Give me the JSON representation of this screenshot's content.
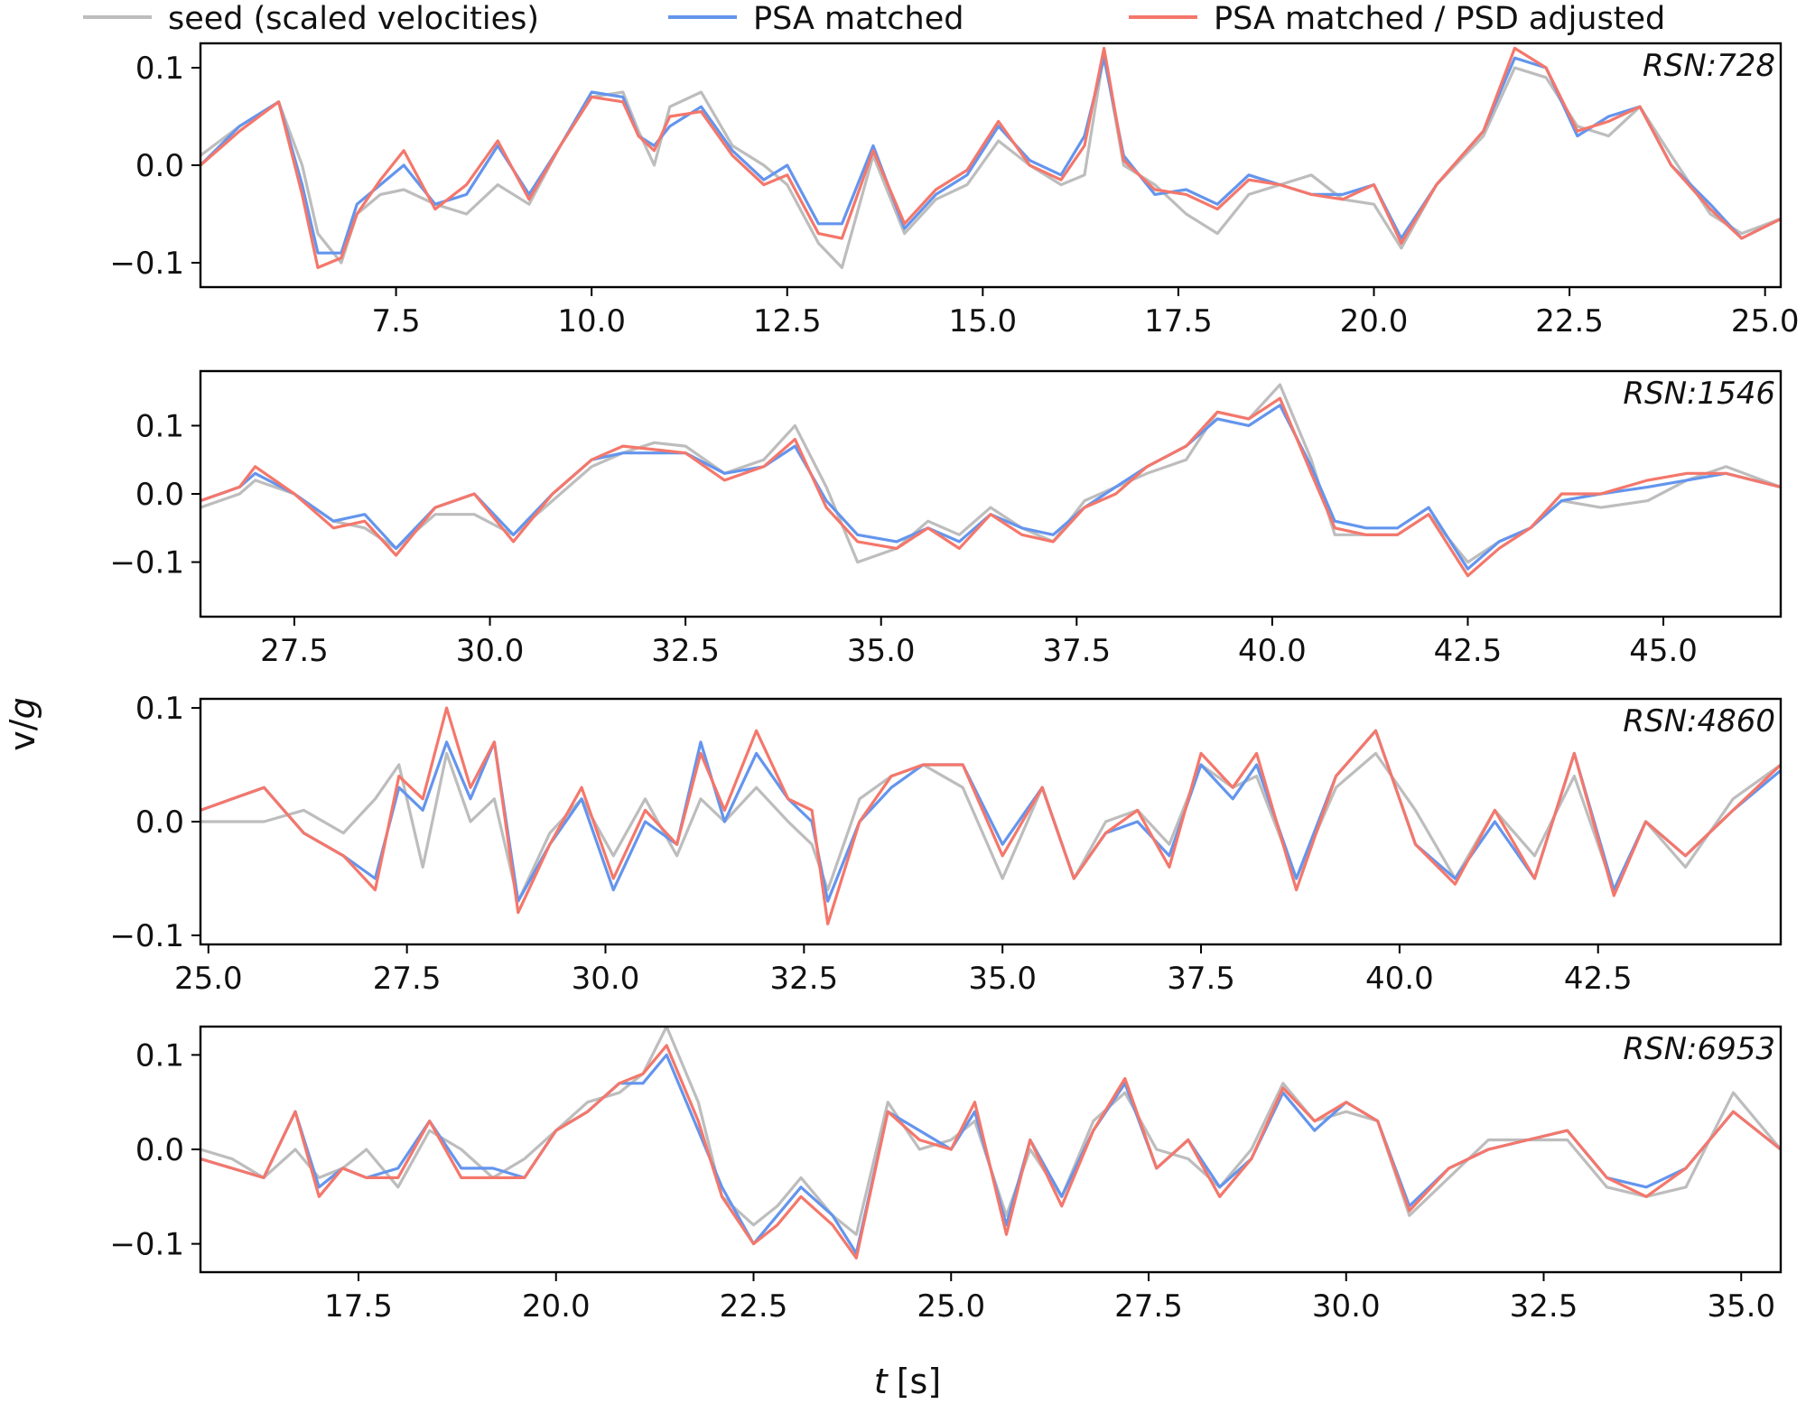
{
  "legend": [
    {
      "label": "seed (scaled velocities)",
      "color": "#bdbdbd"
    },
    {
      "label": "PSA matched",
      "color": "#6495ed"
    },
    {
      "label": "PSA matched / PSD adjusted",
      "color": "#f4776b"
    }
  ],
  "xlabel_italic": "t",
  "xlabel_unit": "[s]",
  "ylabel_main": "v/",
  "ylabel_italic": "g",
  "chart_data": [
    {
      "type": "line",
      "tag": "RSN:728",
      "xlim": [
        5.0,
        25.2
      ],
      "ylim": [
        -0.125,
        0.125
      ],
      "xticks": [
        "7.5",
        "10.0",
        "12.5",
        "15.0",
        "17.5",
        "20.0",
        "22.5",
        "25.0"
      ],
      "yticks": [
        "0.1",
        "0.0",
        "−0.1"
      ],
      "x": [
        5.0,
        5.5,
        6.0,
        6.3,
        6.5,
        6.8,
        7.0,
        7.3,
        7.6,
        8.0,
        8.4,
        8.8,
        9.2,
        9.6,
        10.0,
        10.4,
        10.6,
        10.8,
        11.0,
        11.4,
        11.8,
        12.2,
        12.5,
        12.9,
        13.2,
        13.6,
        14.0,
        14.4,
        14.8,
        15.2,
        15.6,
        16.0,
        16.3,
        16.55,
        16.8,
        17.2,
        17.6,
        18.0,
        18.4,
        18.8,
        19.2,
        19.6,
        20.0,
        20.35,
        20.8,
        21.4,
        21.8,
        22.2,
        22.6,
        23.0,
        23.4,
        23.8,
        24.3,
        24.7,
        25.2
      ],
      "series": [
        {
          "name": "seed (scaled velocities)",
          "values": [
            0.01,
            0.04,
            0.065,
            0.0,
            -0.07,
            -0.1,
            -0.05,
            -0.03,
            -0.025,
            -0.04,
            -0.05,
            -0.02,
            -0.04,
            0.02,
            0.07,
            0.075,
            0.035,
            0.0,
            0.06,
            0.075,
            0.02,
            0.0,
            -0.02,
            -0.08,
            -0.105,
            0.01,
            -0.07,
            -0.035,
            -0.02,
            0.025,
            0.0,
            -0.02,
            -0.01,
            0.115,
            0.0,
            -0.02,
            -0.05,
            -0.07,
            -0.03,
            -0.02,
            -0.01,
            -0.035,
            -0.04,
            -0.085,
            -0.02,
            0.03,
            0.1,
            0.09,
            0.04,
            0.03,
            0.06,
            0.01,
            -0.05,
            -0.07,
            -0.055
          ]
        },
        {
          "name": "PSA matched",
          "values": [
            0.0,
            0.04,
            0.065,
            -0.02,
            -0.09,
            -0.09,
            -0.04,
            -0.02,
            0.0,
            -0.04,
            -0.03,
            0.02,
            -0.03,
            0.02,
            0.075,
            0.07,
            0.03,
            0.02,
            0.04,
            0.06,
            0.015,
            -0.015,
            0.0,
            -0.06,
            -0.06,
            0.02,
            -0.065,
            -0.03,
            -0.01,
            0.04,
            0.005,
            -0.01,
            0.03,
            0.11,
            0.01,
            -0.03,
            -0.025,
            -0.04,
            -0.01,
            -0.02,
            -0.03,
            -0.03,
            -0.02,
            -0.075,
            -0.02,
            0.035,
            0.11,
            0.1,
            0.03,
            0.05,
            0.06,
            0.0,
            -0.04,
            -0.075,
            -0.055
          ]
        },
        {
          "name": "PSA matched / PSD adjusted",
          "values": [
            0.0,
            0.035,
            0.065,
            -0.03,
            -0.105,
            -0.095,
            -0.05,
            -0.015,
            0.015,
            -0.045,
            -0.02,
            0.025,
            -0.035,
            0.02,
            0.07,
            0.065,
            0.03,
            0.015,
            0.05,
            0.055,
            0.01,
            -0.02,
            -0.01,
            -0.07,
            -0.075,
            0.015,
            -0.06,
            -0.025,
            -0.005,
            0.045,
            0.0,
            -0.015,
            0.02,
            0.12,
            0.005,
            -0.025,
            -0.03,
            -0.045,
            -0.015,
            -0.02,
            -0.03,
            -0.035,
            -0.02,
            -0.08,
            -0.02,
            0.035,
            0.12,
            0.1,
            0.035,
            0.045,
            0.06,
            0.0,
            -0.045,
            -0.075,
            -0.055
          ]
        }
      ]
    },
    {
      "type": "line",
      "tag": "RSN:1546",
      "xlim": [
        26.3,
        46.5
      ],
      "ylim": [
        -0.18,
        0.18
      ],
      "xticks": [
        "27.5",
        "30.0",
        "32.5",
        "35.0",
        "37.5",
        "40.0",
        "42.5",
        "45.0"
      ],
      "yticks": [
        "0.1",
        "0.0",
        "−0.1"
      ],
      "x": [
        26.3,
        26.8,
        27.0,
        27.5,
        28.0,
        28.4,
        28.8,
        29.3,
        29.8,
        30.3,
        30.8,
        31.3,
        31.7,
        32.1,
        32.5,
        33.0,
        33.5,
        33.9,
        34.3,
        34.7,
        35.2,
        35.6,
        36.0,
        36.4,
        36.8,
        37.2,
        37.6,
        38.0,
        38.4,
        38.9,
        39.3,
        39.7,
        40.1,
        40.5,
        40.8,
        41.2,
        41.6,
        42.0,
        42.5,
        42.9,
        43.3,
        43.7,
        44.2,
        44.8,
        45.3,
        45.8,
        46.5
      ],
      "series": [
        {
          "name": "seed (scaled velocities)",
          "values": [
            -0.02,
            0.0,
            0.02,
            0.0,
            -0.04,
            -0.05,
            -0.08,
            -0.03,
            -0.03,
            -0.06,
            -0.01,
            0.04,
            0.06,
            0.075,
            0.07,
            0.03,
            0.05,
            0.1,
            0.01,
            -0.1,
            -0.08,
            -0.04,
            -0.06,
            -0.02,
            -0.05,
            -0.07,
            -0.01,
            0.01,
            0.03,
            0.05,
            0.12,
            0.11,
            0.16,
            0.05,
            -0.06,
            -0.06,
            -0.06,
            -0.03,
            -0.1,
            -0.07,
            -0.05,
            -0.01,
            -0.02,
            -0.01,
            0.02,
            0.04,
            0.01
          ]
        },
        {
          "name": "PSA matched",
          "values": [
            -0.01,
            0.01,
            0.03,
            0.0,
            -0.04,
            -0.03,
            -0.08,
            -0.02,
            0.0,
            -0.06,
            0.0,
            0.05,
            0.06,
            0.06,
            0.06,
            0.03,
            0.04,
            0.07,
            -0.01,
            -0.06,
            -0.07,
            -0.05,
            -0.07,
            -0.03,
            -0.05,
            -0.06,
            -0.02,
            0.01,
            0.04,
            0.07,
            0.11,
            0.1,
            0.13,
            0.04,
            -0.04,
            -0.05,
            -0.05,
            -0.02,
            -0.11,
            -0.07,
            -0.05,
            -0.01,
            0.0,
            0.01,
            0.02,
            0.03,
            0.01
          ]
        },
        {
          "name": "PSA matched / PSD adjusted",
          "values": [
            -0.01,
            0.01,
            0.04,
            0.0,
            -0.05,
            -0.04,
            -0.09,
            -0.02,
            0.0,
            -0.07,
            0.0,
            0.05,
            0.07,
            0.065,
            0.06,
            0.02,
            0.04,
            0.08,
            -0.02,
            -0.07,
            -0.08,
            -0.05,
            -0.08,
            -0.03,
            -0.06,
            -0.07,
            -0.02,
            0.0,
            0.04,
            0.07,
            0.12,
            0.11,
            0.14,
            0.03,
            -0.05,
            -0.06,
            -0.06,
            -0.03,
            -0.12,
            -0.08,
            -0.05,
            0.0,
            0.0,
            0.02,
            0.03,
            0.03,
            0.01
          ]
        }
      ]
    },
    {
      "type": "line",
      "tag": "RSN:4860",
      "xlim": [
        24.9,
        44.8
      ],
      "ylim": [
        -0.108,
        0.108
      ],
      "xticks": [
        "25.0",
        "27.5",
        "30.0",
        "32.5",
        "35.0",
        "37.5",
        "40.0",
        "42.5"
      ],
      "yticks": [
        "0.1",
        "0.0",
        "−0.1"
      ],
      "x": [
        24.9,
        25.3,
        25.7,
        26.2,
        26.7,
        27.1,
        27.4,
        27.7,
        28.0,
        28.3,
        28.6,
        28.9,
        29.3,
        29.7,
        30.1,
        30.5,
        30.9,
        31.2,
        31.5,
        31.9,
        32.3,
        32.6,
        32.8,
        33.2,
        33.6,
        34.0,
        34.5,
        35.0,
        35.5,
        35.9,
        36.3,
        36.7,
        37.1,
        37.5,
        37.9,
        38.2,
        38.7,
        39.2,
        39.7,
        40.2,
        40.7,
        41.2,
        41.7,
        42.2,
        42.7,
        43.1,
        43.6,
        44.2,
        44.8
      ],
      "series": [
        {
          "name": "seed (scaled velocities)",
          "values": [
            0.0,
            0.0,
            0.0,
            0.01,
            -0.01,
            0.02,
            0.05,
            -0.04,
            0.06,
            0.0,
            0.02,
            -0.07,
            -0.01,
            0.02,
            -0.03,
            0.02,
            -0.03,
            0.02,
            0.0,
            0.03,
            0.0,
            -0.02,
            -0.06,
            0.02,
            0.04,
            0.05,
            0.03,
            -0.05,
            0.03,
            -0.05,
            0.0,
            0.01,
            -0.02,
            0.05,
            0.03,
            0.04,
            -0.05,
            0.03,
            0.06,
            0.01,
            -0.05,
            0.01,
            -0.03,
            0.04,
            -0.06,
            0.0,
            -0.04,
            0.02,
            0.05
          ]
        },
        {
          "name": "PSA matched",
          "values": [
            0.01,
            0.02,
            0.03,
            -0.01,
            -0.03,
            -0.05,
            0.03,
            0.01,
            0.07,
            0.02,
            0.07,
            -0.07,
            -0.02,
            0.02,
            -0.06,
            0.0,
            -0.02,
            0.07,
            0.0,
            0.06,
            0.02,
            0.0,
            -0.07,
            0.0,
            0.03,
            0.05,
            0.05,
            -0.02,
            0.03,
            -0.05,
            -0.01,
            0.0,
            -0.03,
            0.05,
            0.02,
            0.05,
            -0.05,
            0.04,
            0.08,
            -0.02,
            -0.05,
            0.0,
            -0.05,
            0.06,
            -0.06,
            0.0,
            -0.03,
            0.01,
            0.045
          ]
        },
        {
          "name": "PSA matched / PSD adjusted",
          "values": [
            0.01,
            0.02,
            0.03,
            -0.01,
            -0.03,
            -0.06,
            0.04,
            0.02,
            0.1,
            0.03,
            0.07,
            -0.08,
            -0.02,
            0.03,
            -0.05,
            0.01,
            -0.02,
            0.06,
            0.01,
            0.08,
            0.02,
            0.01,
            -0.09,
            0.0,
            0.04,
            0.05,
            0.05,
            -0.03,
            0.03,
            -0.05,
            -0.01,
            0.01,
            -0.04,
            0.06,
            0.03,
            0.06,
            -0.06,
            0.04,
            0.08,
            -0.02,
            -0.055,
            0.01,
            -0.05,
            0.06,
            -0.065,
            0.0,
            -0.03,
            0.01,
            0.05
          ]
        }
      ]
    },
    {
      "type": "line",
      "tag": "RSN:6953",
      "xlim": [
        15.5,
        35.5
      ],
      "ylim": [
        -0.13,
        0.13
      ],
      "xticks": [
        "17.5",
        "20.0",
        "22.5",
        "25.0",
        "27.5",
        "30.0",
        "32.5",
        "35.0"
      ],
      "yticks": [
        "0.1",
        "0.0",
        "−0.1"
      ],
      "x": [
        15.5,
        15.9,
        16.3,
        16.7,
        17.0,
        17.3,
        17.6,
        18.0,
        18.4,
        18.8,
        19.2,
        19.6,
        20.0,
        20.4,
        20.8,
        21.1,
        21.4,
        21.8,
        22.1,
        22.5,
        22.8,
        23.1,
        23.5,
        23.8,
        24.2,
        24.6,
        25.0,
        25.3,
        25.7,
        26.0,
        26.4,
        26.8,
        27.2,
        27.6,
        28.0,
        28.4,
        28.8,
        29.2,
        29.6,
        30.0,
        30.4,
        30.8,
        31.3,
        31.8,
        32.3,
        32.8,
        33.3,
        33.8,
        34.3,
        34.9,
        35.5
      ],
      "series": [
        {
          "name": "seed (scaled velocities)",
          "values": [
            0.0,
            -0.01,
            -0.03,
            0.0,
            -0.03,
            -0.02,
            0.0,
            -0.04,
            0.02,
            0.0,
            -0.03,
            -0.01,
            0.02,
            0.05,
            0.06,
            0.08,
            0.13,
            0.05,
            -0.05,
            -0.08,
            -0.06,
            -0.03,
            -0.07,
            -0.09,
            0.05,
            0.0,
            0.01,
            0.03,
            -0.07,
            0.0,
            -0.05,
            0.03,
            0.06,
            0.0,
            -0.01,
            -0.04,
            0.0,
            0.07,
            0.03,
            0.04,
            0.03,
            -0.07,
            -0.03,
            0.01,
            0.01,
            0.01,
            -0.04,
            -0.05,
            -0.04,
            0.06,
            0.0
          ]
        },
        {
          "name": "PSA matched",
          "values": [
            -0.01,
            -0.02,
            -0.03,
            0.04,
            -0.04,
            -0.02,
            -0.03,
            -0.02,
            0.03,
            -0.02,
            -0.02,
            -0.03,
            0.02,
            0.04,
            0.07,
            0.07,
            0.1,
            0.02,
            -0.04,
            -0.1,
            -0.07,
            -0.04,
            -0.07,
            -0.11,
            0.04,
            0.02,
            0.0,
            0.04,
            -0.08,
            0.01,
            -0.05,
            0.02,
            0.07,
            -0.02,
            0.01,
            -0.04,
            -0.01,
            0.06,
            0.02,
            0.05,
            0.03,
            -0.06,
            -0.02,
            0.0,
            0.01,
            0.02,
            -0.03,
            -0.04,
            -0.02,
            0.04,
            0.0
          ]
        },
        {
          "name": "PSA matched / PSD adjusted",
          "values": [
            -0.01,
            -0.02,
            -0.03,
            0.04,
            -0.05,
            -0.02,
            -0.03,
            -0.03,
            0.03,
            -0.03,
            -0.03,
            -0.03,
            0.02,
            0.04,
            0.07,
            0.08,
            0.11,
            0.03,
            -0.05,
            -0.1,
            -0.08,
            -0.05,
            -0.08,
            -0.115,
            0.04,
            0.01,
            0.0,
            0.05,
            -0.09,
            0.01,
            -0.06,
            0.02,
            0.075,
            -0.02,
            0.01,
            -0.05,
            -0.01,
            0.065,
            0.03,
            0.05,
            0.03,
            -0.065,
            -0.02,
            0.0,
            0.01,
            0.02,
            -0.03,
            -0.05,
            -0.02,
            0.04,
            0.0
          ]
        }
      ]
    }
  ]
}
